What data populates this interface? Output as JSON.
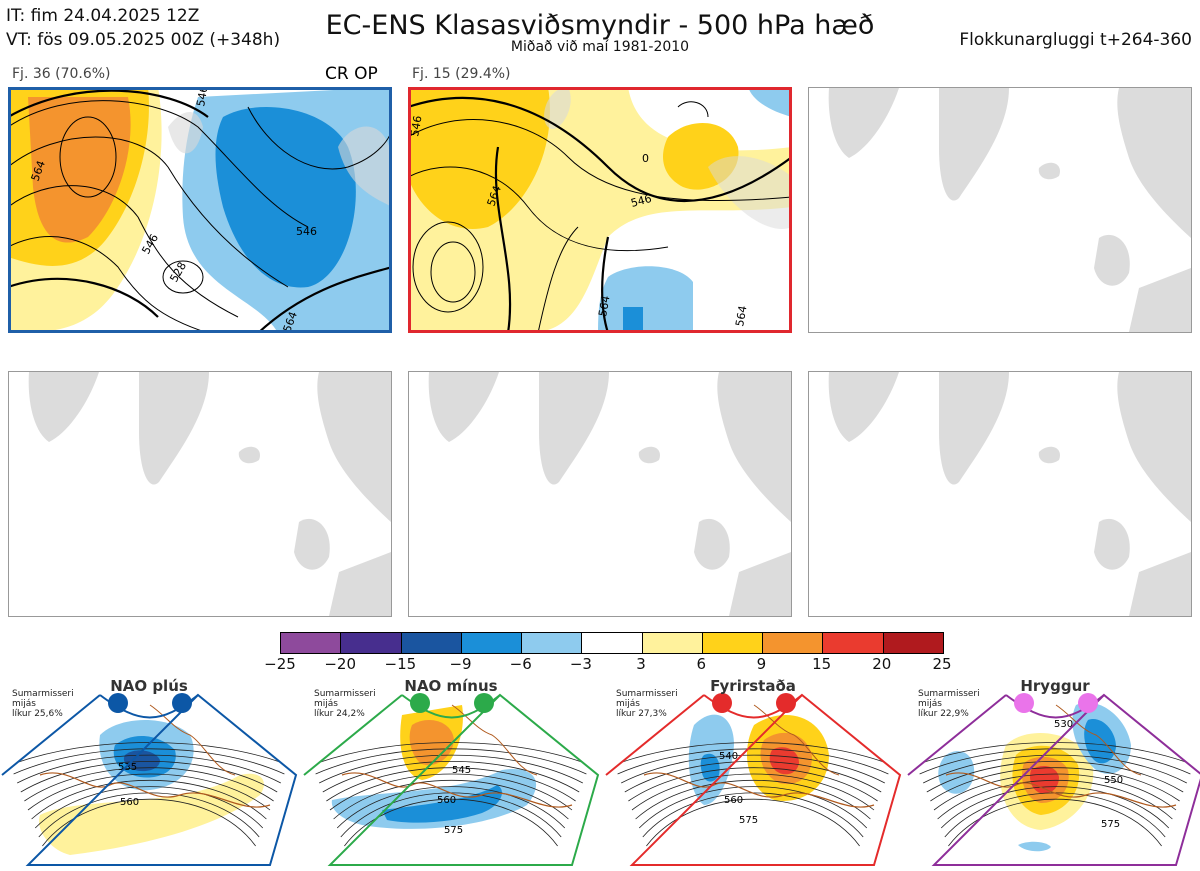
{
  "header": {
    "init_time": "IT: fim 24.04.2025 12Z",
    "valid_time": "VT: fös 09.05.2025 00Z  (+348h)",
    "title": "EC-ENS Klasasviðsmyndir - 500 hPa hæð",
    "subtitle": "Miðað við maí 1981-2010",
    "window": "Flokkunargluggi t+264-360"
  },
  "clusters": [
    {
      "label": "Fj. 36 (70.6%)",
      "tag": "CR OP",
      "border_color": "#1f5fa8",
      "contour_labels": [
        "564",
        "546",
        "528",
        "546",
        "546",
        "564"
      ]
    },
    {
      "label": "Fj. 15 (29.4%)",
      "tag": "",
      "border_color": "#e0282e",
      "contour_labels": [
        "546",
        "564",
        "0",
        "546",
        "564",
        "564"
      ]
    }
  ],
  "colorbar": {
    "ticks": [
      "−25",
      "−20",
      "−15",
      "−9",
      "−6",
      "−3",
      "3",
      "6",
      "9",
      "15",
      "20",
      "25"
    ],
    "colors": [
      "#8e4a9c",
      "#472e8e",
      "#1a55a0",
      "#1b8fd8",
      "#8ecbee",
      "#ffffff",
      "#fff29c",
      "#ffd21a",
      "#f4942e",
      "#ea3b2f",
      "#b01a1e"
    ]
  },
  "regimes": [
    {
      "name": "NAO plús",
      "season": "Sumarmisseri",
      "period": "mijás",
      "prob": "líkur 25,6%",
      "color": "#0c57a6",
      "frame": "#0c57a6",
      "contour_labels": [
        "535",
        "560"
      ]
    },
    {
      "name": "NAO mínus",
      "season": "Sumarmisseri",
      "period": "mijás",
      "prob": "líkur 24,2%",
      "color": "#2caa4a",
      "frame": "#2caa4a",
      "contour_labels": [
        "545",
        "560",
        "575"
      ]
    },
    {
      "name": "Fyrirstaða",
      "season": "Sumarmisseri",
      "period": "mijás",
      "prob": "líkur 27,3%",
      "color": "#e42b2b",
      "frame": "#e42b2b",
      "contour_labels": [
        "540",
        "560",
        "575"
      ]
    },
    {
      "name": "Hryggur",
      "season": "Sumarmisseri",
      "period": "mijás",
      "prob": "líkur 22,9%",
      "color": "#ea74ea",
      "frame": "#8e2e9a",
      "contour_labels": [
        "530",
        "550",
        "575"
      ]
    }
  ]
}
